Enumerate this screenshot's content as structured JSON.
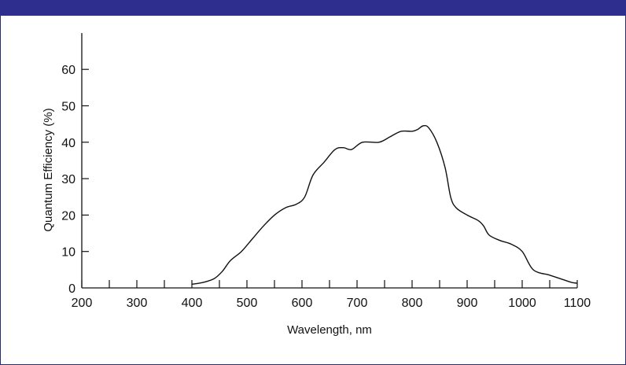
{
  "colors": {
    "header_bar": "#2e2e8f",
    "line": "#111111",
    "axis": "#111111"
  },
  "chart_data": {
    "type": "line",
    "title": "",
    "xlabel": "Wavelength, nm",
    "ylabel": "Quantum Efficiency (%)",
    "xlim": [
      200,
      1100
    ],
    "ylim": [
      0,
      70
    ],
    "x_ticks": [
      200,
      300,
      400,
      500,
      600,
      700,
      800,
      900,
      1000,
      1100
    ],
    "y_ticks": [
      0,
      10,
      20,
      30,
      40,
      50,
      60
    ],
    "grid": false,
    "legend": "none",
    "series": [
      {
        "x": [
          400,
          420,
          440,
          455,
          470,
          490,
          510,
          530,
          550,
          570,
          590,
          605,
          620,
          640,
          660,
          675,
          690,
          710,
          740,
          760,
          780,
          800,
          810,
          820,
          830,
          845,
          860,
          870,
          880,
          900,
          920,
          930,
          940,
          960,
          980,
          1000,
          1020,
          1050,
          1070,
          1090,
          1100
        ],
        "y": [
          1,
          1.5,
          2.5,
          4.5,
          7.5,
          10,
          13.5,
          17,
          20,
          22,
          23,
          25,
          31,
          34.5,
          38,
          38.5,
          38,
          40,
          40,
          41.5,
          43,
          43,
          43.5,
          44.5,
          44,
          40,
          33,
          25,
          22,
          20,
          18.5,
          17,
          14.5,
          13,
          12,
          10,
          5,
          3.5,
          2.5,
          1.5,
          1.3
        ]
      }
    ]
  }
}
